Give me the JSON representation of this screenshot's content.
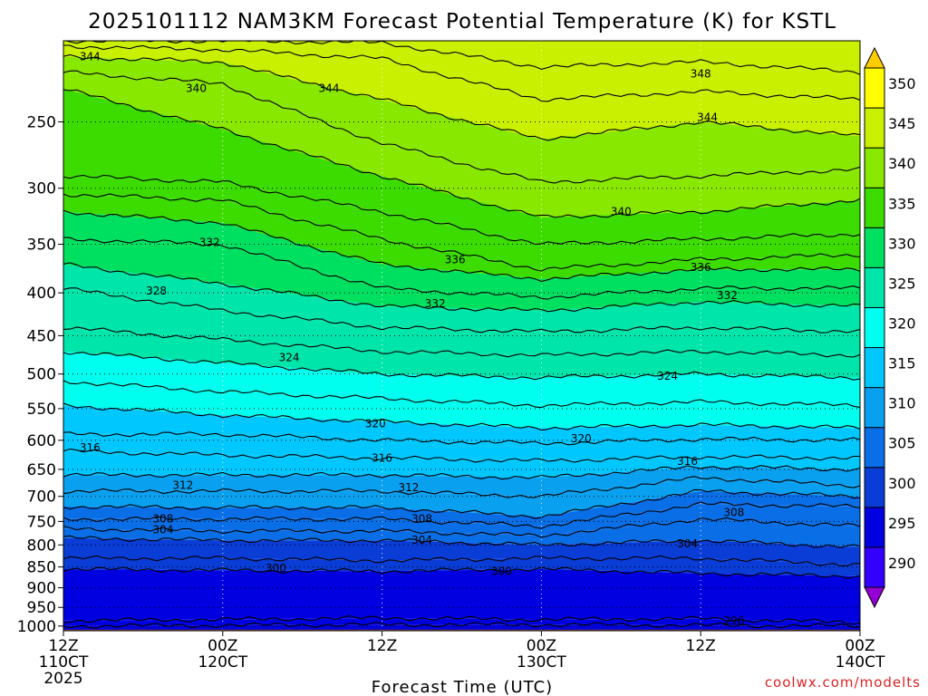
{
  "chart_data": {
    "type": "heatmap",
    "title": "2025101112 NAM3KM Forecast Potential Temperature (K) for KSTL",
    "xlabel": "Forecast Time (UTC)",
    "ylabel": "",
    "credit": "coolwx.com/modelts",
    "x_ticks": [
      {
        "hour": 0,
        "line1": "12Z",
        "line2": "110CT",
        "line3": "2025"
      },
      {
        "hour": 12,
        "line1": "00Z",
        "line2": "120CT",
        "line3": ""
      },
      {
        "hour": 24,
        "line1": "12Z",
        "line2": "",
        "line3": ""
      },
      {
        "hour": 36,
        "line1": "00Z",
        "line2": "130CT",
        "line3": ""
      },
      {
        "hour": 48,
        "line1": "12Z",
        "line2": "",
        "line3": ""
      },
      {
        "hour": 60,
        "line1": "00Z",
        "line2": "140CT",
        "line3": ""
      }
    ],
    "xlim": [
      0,
      60
    ],
    "y_ticks": [
      250,
      300,
      350,
      400,
      450,
      500,
      550,
      600,
      650,
      700,
      750,
      800,
      850,
      900,
      950,
      1000
    ],
    "ylim": [
      200,
      1013
    ],
    "yscale": "log-pressure",
    "ground_level_hpa": 1013,
    "colorbar": {
      "ticks": [
        290,
        295,
        300,
        305,
        310,
        315,
        320,
        325,
        330,
        335,
        340,
        345,
        350
      ],
      "colors": [
        "#9400d3",
        "#3300ff",
        "#0000e0",
        "#0a3cd6",
        "#0a6ee6",
        "#0aa0f0",
        "#00c8ff",
        "#00ffee",
        "#00e6aa",
        "#00e060",
        "#3cdc00",
        "#88e800",
        "#c8f000",
        "#ffff00",
        "#ffcc00"
      ]
    },
    "ground_color": "#a0522d",
    "contour_interval": 2,
    "series": [
      {
        "name": "296",
        "pressure_hpa": [
          1000,
          998,
          996,
          996,
          998,
          1000
        ]
      },
      {
        "name": "298",
        "pressure_hpa": [
          985,
          982,
          978,
          982,
          980,
          990
        ]
      },
      {
        "name": "300",
        "pressure_hpa": [
          855,
          858,
          860,
          855,
          865,
          872
        ]
      },
      {
        "name": "302",
        "pressure_hpa": [
          830,
          830,
          835,
          830,
          830,
          845
        ]
      },
      {
        "name": "304",
        "pressure_hpa": [
          785,
          790,
          790,
          800,
          790,
          805
        ]
      },
      {
        "name": "306",
        "pressure_hpa": [
          765,
          770,
          770,
          780,
          745,
          760
        ]
      },
      {
        "name": "308",
        "pressure_hpa": [
          745,
          745,
          745,
          760,
          715,
          720
        ]
      },
      {
        "name": "310",
        "pressure_hpa": [
          720,
          722,
          722,
          740,
          690,
          700
        ]
      },
      {
        "name": "312",
        "pressure_hpa": [
          690,
          690,
          690,
          700,
          665,
          680
        ]
      },
      {
        "name": "314",
        "pressure_hpa": [
          660,
          660,
          660,
          665,
          645,
          650
        ]
      },
      {
        "name": "316",
        "pressure_hpa": [
          618,
          625,
          630,
          635,
          628,
          630
        ]
      },
      {
        "name": "318",
        "pressure_hpa": [
          590,
          590,
          600,
          605,
          598,
          600
        ]
      },
      {
        "name": "320",
        "pressure_hpa": [
          545,
          560,
          570,
          580,
          575,
          580
        ]
      },
      {
        "name": "322",
        "pressure_hpa": [
          510,
          525,
          535,
          545,
          540,
          545
        ]
      },
      {
        "name": "324",
        "pressure_hpa": [
          470,
          485,
          500,
          505,
          500,
          505
        ]
      },
      {
        "name": "326",
        "pressure_hpa": [
          440,
          455,
          470,
          475,
          470,
          475
        ]
      },
      {
        "name": "328",
        "pressure_hpa": [
          395,
          420,
          440,
          445,
          440,
          445
        ]
      },
      {
        "name": "330",
        "pressure_hpa": [
          370,
          390,
          415,
          420,
          410,
          415
        ]
      },
      {
        "name": "332",
        "pressure_hpa": [
          345,
          350,
          395,
          405,
          395,
          395
        ]
      },
      {
        "name": "334",
        "pressure_hpa": [
          320,
          330,
          370,
          385,
          375,
          375
        ]
      },
      {
        "name": "336",
        "pressure_hpa": [
          305,
          310,
          345,
          375,
          365,
          360
        ]
      },
      {
        "name": "338",
        "pressure_hpa": [
          290,
          295,
          320,
          350,
          345,
          340
        ]
      },
      {
        "name": "340",
        "pressure_hpa": [
          228,
          255,
          290,
          325,
          320,
          310
        ]
      },
      {
        "name": "342",
        "pressure_hpa": [
          218,
          225,
          265,
          295,
          290,
          285
        ]
      },
      {
        "name": "344",
        "pressure_hpa": [
          209,
          212,
          235,
          262,
          250,
          260
        ]
      },
      {
        "name": "346",
        "pressure_hpa": [
          203,
          205,
          210,
          235,
          230,
          235
        ]
      },
      {
        "name": "348",
        "pressure_hpa": [
          200,
          200,
          201,
          215,
          212,
          218
        ]
      }
    ],
    "labels": [
      {
        "text": "344",
        "hour": 2,
        "pressure_hpa": 209
      },
      {
        "text": "340",
        "hour": 10,
        "pressure_hpa": 228
      },
      {
        "text": "344",
        "hour": 20,
        "pressure_hpa": 228
      },
      {
        "text": "348",
        "hour": 48,
        "pressure_hpa": 219
      },
      {
        "text": "344",
        "hour": 48.5,
        "pressure_hpa": 247
      },
      {
        "text": "332",
        "hour": 11,
        "pressure_hpa": 348
      },
      {
        "text": "340",
        "hour": 42,
        "pressure_hpa": 320
      },
      {
        "text": "336",
        "hour": 29.5,
        "pressure_hpa": 365
      },
      {
        "text": "336",
        "hour": 48,
        "pressure_hpa": 373
      },
      {
        "text": "328",
        "hour": 7,
        "pressure_hpa": 398
      },
      {
        "text": "332",
        "hour": 28,
        "pressure_hpa": 412
      },
      {
        "text": "332",
        "hour": 50,
        "pressure_hpa": 403
      },
      {
        "text": "324",
        "hour": 17,
        "pressure_hpa": 478
      },
      {
        "text": "324",
        "hour": 45.5,
        "pressure_hpa": 503
      },
      {
        "text": "320",
        "hour": 23.5,
        "pressure_hpa": 573
      },
      {
        "text": "320",
        "hour": 39,
        "pressure_hpa": 597
      },
      {
        "text": "316",
        "hour": 2,
        "pressure_hpa": 612
      },
      {
        "text": "316",
        "hour": 24,
        "pressure_hpa": 630
      },
      {
        "text": "316",
        "hour": 47,
        "pressure_hpa": 636
      },
      {
        "text": "312",
        "hour": 9,
        "pressure_hpa": 679
      },
      {
        "text": "312",
        "hour": 26,
        "pressure_hpa": 683
      },
      {
        "text": "308",
        "hour": 7.5,
        "pressure_hpa": 745
      },
      {
        "text": "308",
        "hour": 27,
        "pressure_hpa": 745
      },
      {
        "text": "308",
        "hour": 50.5,
        "pressure_hpa": 732
      },
      {
        "text": "304",
        "hour": 7.5,
        "pressure_hpa": 767
      },
      {
        "text": "304",
        "hour": 27,
        "pressure_hpa": 790
      },
      {
        "text": "304",
        "hour": 47,
        "pressure_hpa": 797
      },
      {
        "text": "300",
        "hour": 16,
        "pressure_hpa": 853
      },
      {
        "text": "300",
        "hour": 33,
        "pressure_hpa": 860
      },
      {
        "text": "296",
        "hour": 50.5,
        "pressure_hpa": 985
      }
    ]
  }
}
